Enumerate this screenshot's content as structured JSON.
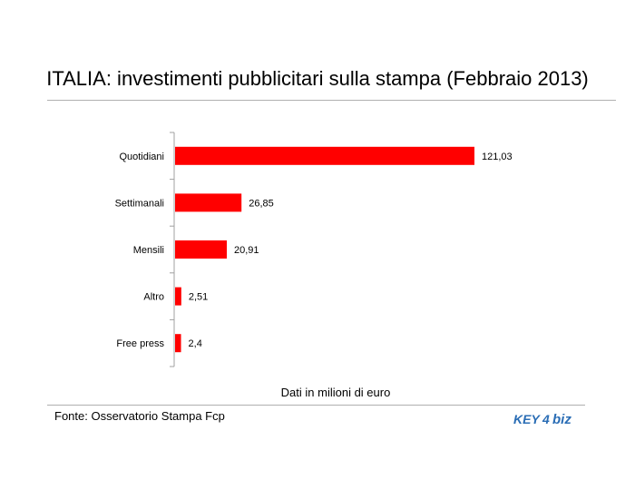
{
  "chart_data": {
    "type": "bar",
    "orientation": "horizontal",
    "title": "ITALIA: investimenti pubblicitari sulla stampa (Febbraio 2013)",
    "xlabel": "Dati in milioni di euro",
    "ylabel": "",
    "categories": [
      "Quotidiani",
      "Settimanali",
      "Mensili",
      "Altro",
      "Free press"
    ],
    "values": [
      121.03,
      26.85,
      20.91,
      2.51,
      2.4
    ],
    "value_labels": [
      "121,03",
      "26,85",
      "20,91",
      "2,51",
      "2,4"
    ],
    "xlim": [
      0,
      121.03
    ],
    "grid": false,
    "legend": "none",
    "bar_color": "#ff0000",
    "axis_color": "#a0a0a0"
  },
  "source": "Fonte: Osservatorio Stampa Fcp",
  "logo": {
    "text_left": "KEY",
    "text_mark": "4",
    "text_right": "biz",
    "color": "#2a6db5"
  }
}
